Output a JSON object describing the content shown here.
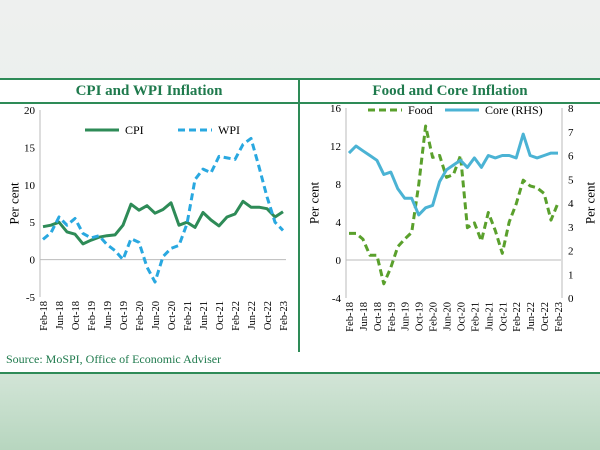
{
  "source": "Source: MoSPI, Office of Economic Adviser",
  "x_ticks": [
    "Feb-18",
    "Jun-18",
    "Oct-18",
    "Feb-19",
    "Jun-19",
    "Oct-19",
    "Feb-20",
    "Jun-20",
    "Oct-20",
    "Feb-21",
    "Jun-21",
    "Oct-21",
    "Feb-22",
    "Jun-22",
    "Oct-22",
    "Feb-23"
  ],
  "chart_data": [
    {
      "type": "line",
      "title": "CPI and WPI Inflation",
      "ylabel": "Per cent",
      "ylim": [
        -5,
        20
      ],
      "yticks": [
        -5,
        0,
        5,
        10,
        15,
        20
      ],
      "legend": "top",
      "x": [
        "Feb-18",
        "Apr-18",
        "Jun-18",
        "Aug-18",
        "Oct-18",
        "Dec-18",
        "Feb-19",
        "Apr-19",
        "Jun-19",
        "Aug-19",
        "Oct-19",
        "Dec-19",
        "Feb-20",
        "Apr-20",
        "Jun-20",
        "Aug-20",
        "Oct-20",
        "Dec-20",
        "Feb-21",
        "Apr-21",
        "Jun-21",
        "Aug-21",
        "Oct-21",
        "Dec-21",
        "Feb-22",
        "Apr-22",
        "Jun-22",
        "Aug-22",
        "Oct-22",
        "Dec-22",
        "Feb-23"
      ],
      "series": [
        {
          "name": "CPI",
          "color": "#2e8b57",
          "style": "solid",
          "values": [
            4.4,
            4.6,
            5.0,
            3.7,
            3.4,
            2.1,
            2.6,
            3.0,
            3.2,
            3.3,
            4.6,
            7.4,
            6.6,
            7.2,
            6.2,
            6.7,
            7.6,
            4.6,
            5.0,
            4.3,
            6.3,
            5.3,
            4.5,
            5.7,
            6.1,
            7.8,
            7.0,
            7.0,
            6.8,
            5.7,
            6.4
          ]
        },
        {
          "name": "WPI",
          "color": "#29a8e0",
          "style": "dashed",
          "values": [
            2.7,
            3.6,
            5.7,
            4.6,
            5.5,
            3.5,
            2.9,
            3.2,
            2.0,
            1.2,
            0.0,
            2.8,
            2.3,
            -1.0,
            -3.0,
            0.4,
            1.5,
            1.9,
            4.8,
            10.7,
            12.1,
            11.6,
            13.8,
            13.6,
            13.4,
            15.4,
            16.2,
            12.4,
            8.4,
            5.0,
            3.9
          ]
        }
      ]
    },
    {
      "type": "line",
      "title": "Food and Core Inflation",
      "ylabel": "Per cent",
      "ylim": [
        -4,
        16
      ],
      "yticks": [
        -4,
        0,
        4,
        8,
        12,
        16
      ],
      "y2label": "Per cent",
      "y2lim": [
        0,
        8
      ],
      "y2ticks": [
        0,
        1,
        2,
        3,
        4,
        5,
        6,
        7,
        8
      ],
      "legend": "top",
      "x": [
        "Feb-18",
        "Apr-18",
        "Jun-18",
        "Aug-18",
        "Oct-18",
        "Dec-18",
        "Feb-19",
        "Apr-19",
        "Jun-19",
        "Aug-19",
        "Oct-19",
        "Dec-19",
        "Feb-20",
        "Apr-20",
        "Jun-20",
        "Aug-20",
        "Oct-20",
        "Dec-20",
        "Feb-21",
        "Apr-21",
        "Jun-21",
        "Aug-21",
        "Oct-21",
        "Dec-21",
        "Feb-22",
        "Apr-22",
        "Jun-22",
        "Aug-22",
        "Oct-22",
        "Dec-22",
        "Feb-23"
      ],
      "series": [
        {
          "name": "Food",
          "color": "#5aa02c",
          "style": "dashed",
          "axis": "left",
          "values": [
            2.8,
            2.8,
            2.2,
            0.5,
            0.5,
            -2.5,
            -0.8,
            1.4,
            2.2,
            2.9,
            7.9,
            14.1,
            10.8,
            11.0,
            8.7,
            9.0,
            11.0,
            3.4,
            3.9,
            2.0,
            5.0,
            3.1,
            0.7,
            4.0,
            5.9,
            8.4,
            7.8,
            7.6,
            7.0,
            4.2,
            6.0
          ]
        },
        {
          "name": "Core (RHS)",
          "color": "#4bb3d4",
          "style": "solid",
          "axis": "right",
          "values": [
            6.1,
            6.4,
            6.2,
            6.0,
            5.8,
            5.2,
            5.3,
            4.6,
            4.2,
            4.2,
            3.5,
            3.8,
            3.9,
            4.9,
            5.4,
            5.6,
            5.8,
            5.5,
            5.9,
            5.5,
            6.0,
            5.9,
            6.0,
            6.0,
            5.9,
            6.9,
            6.0,
            5.9,
            6.0,
            6.1,
            6.1
          ]
        }
      ]
    }
  ]
}
